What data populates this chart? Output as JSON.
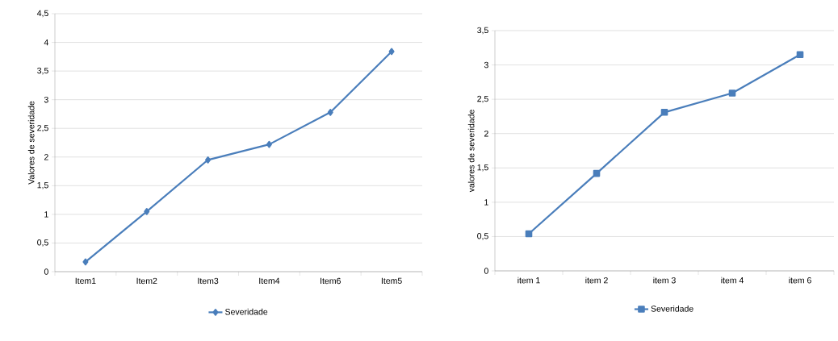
{
  "chart_data": [
    {
      "type": "line",
      "ylabel": "Valores de severidade",
      "categories": [
        "Item1",
        "Item2",
        "Item3",
        "Item4",
        "Item6",
        "Item5"
      ],
      "series": [
        {
          "name": "Severidade",
          "color": "#4a7ebb",
          "values": [
            0.17,
            1.05,
            1.95,
            2.22,
            2.78,
            3.84
          ]
        }
      ],
      "ylim": [
        0,
        4.5
      ],
      "yticks": [
        0,
        {
          "value": 0.5,
          "label": "0,5"
        },
        1,
        {
          "value": 1.5,
          "label": "1,5"
        },
        2,
        {
          "value": 2.5,
          "label": "2,5"
        },
        3,
        {
          "value": 3.5,
          "label": "3,5"
        },
        4,
        {
          "value": 4.5,
          "label": "4,5"
        }
      ],
      "grid": "y",
      "legend": "bottom",
      "marker": "diamond",
      "line_style": "solid"
    },
    {
      "type": "line",
      "ylabel": "valores de severidade",
      "categories": [
        "item 1",
        "item 2",
        "item 3",
        "item 4",
        "item 6"
      ],
      "series": [
        {
          "name": "Severidade",
          "color": "#4a7ebb",
          "values": [
            0.54,
            1.42,
            2.31,
            2.59,
            3.15
          ]
        }
      ],
      "ylim": [
        0,
        3.5
      ],
      "yticks": [
        0,
        {
          "value": 0.5,
          "label": "0,5"
        },
        1,
        {
          "value": 1.5,
          "label": "1,5"
        },
        2,
        {
          "value": 2.5,
          "label": "2,5"
        },
        3,
        {
          "value": 3.5,
          "label": "3,5"
        }
      ],
      "grid": "y",
      "legend": "bottom",
      "marker": "square",
      "line_style": "solid"
    }
  ]
}
